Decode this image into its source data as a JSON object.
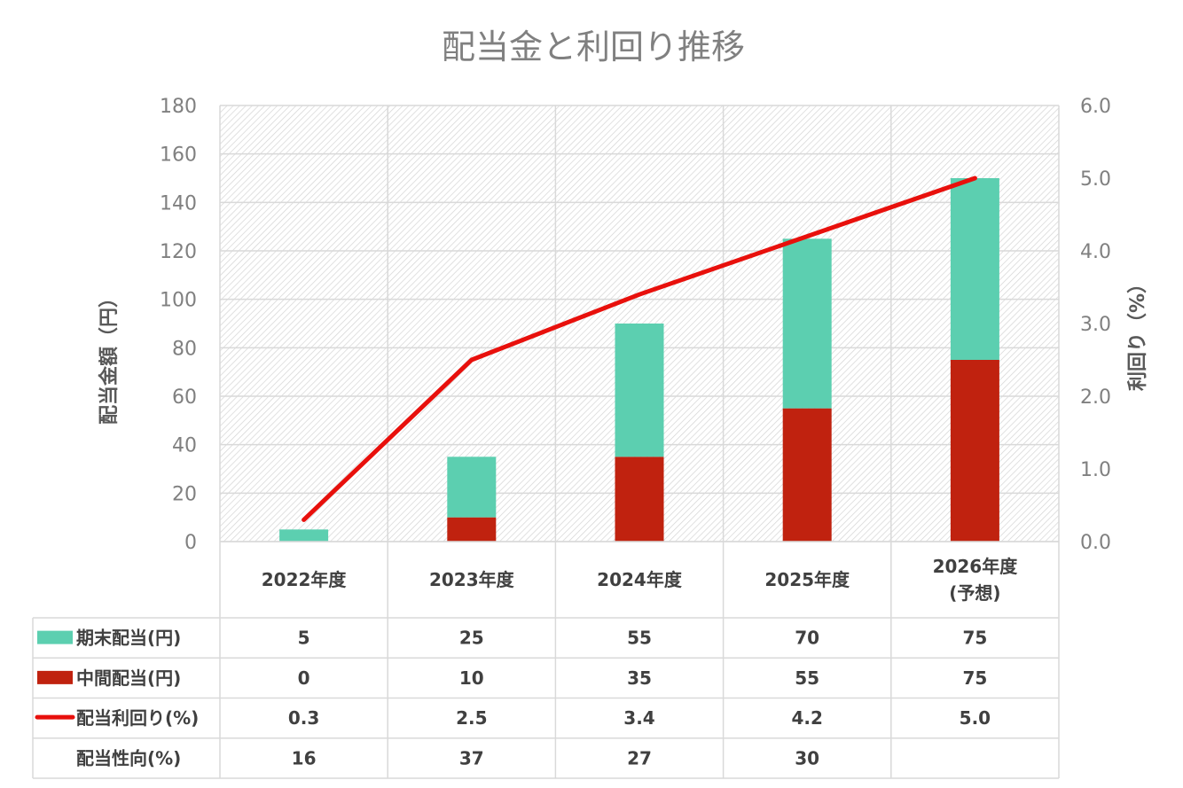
{
  "chart_data": {
    "type": "bar",
    "title": "配当金と利回り推移",
    "ylabel": "配当金額（円）",
    "y2label": "利回り（%）",
    "ylim": [
      0,
      180
    ],
    "y2lim": [
      0,
      6
    ],
    "yticks": [
      "0",
      "20",
      "40",
      "60",
      "80",
      "100",
      "120",
      "140",
      "160",
      "180"
    ],
    "y2ticks": [
      "0.0",
      "1.0",
      "2.0",
      "3.0",
      "4.0",
      "5.0",
      "6.0"
    ],
    "categories": [
      [
        "2022年度"
      ],
      [
        "2023年度"
      ],
      [
        "2024年度"
      ],
      [
        "2025年度"
      ],
      [
        "2026年度",
        "(予想)"
      ]
    ],
    "stacked": true,
    "grid": true,
    "series": [
      {
        "name": "期末配当(円)",
        "kind": "bar",
        "color": "#5ccfb0",
        "values": [
          5,
          25,
          55,
          70,
          75
        ]
      },
      {
        "name": "中間配当(円)",
        "kind": "bar",
        "color": "#c0220f",
        "values": [
          0,
          10,
          35,
          55,
          75
        ]
      },
      {
        "name": "配当利回り(%)",
        "kind": "line",
        "axis": "right",
        "color": "#e8100c",
        "values": [
          0.3,
          2.5,
          3.4,
          4.2,
          5.0
        ]
      }
    ],
    "table": {
      "rows": [
        {
          "label": "期末配当(円)",
          "legend": "bar-teal",
          "cells": [
            "5",
            "25",
            "55",
            "70",
            "75"
          ]
        },
        {
          "label": "中間配当(円)",
          "legend": "bar-red",
          "cells": [
            "0",
            "10",
            "35",
            "55",
            "75"
          ]
        },
        {
          "label": "配当利回り(%)",
          "legend": "line-red",
          "cells": [
            "0.3",
            "2.5",
            "3.4",
            "4.2",
            "5.0"
          ]
        },
        {
          "label": "配当性向(%)",
          "legend": "none",
          "cells": [
            "16",
            "37",
            "27",
            "30",
            ""
          ]
        }
      ]
    }
  }
}
